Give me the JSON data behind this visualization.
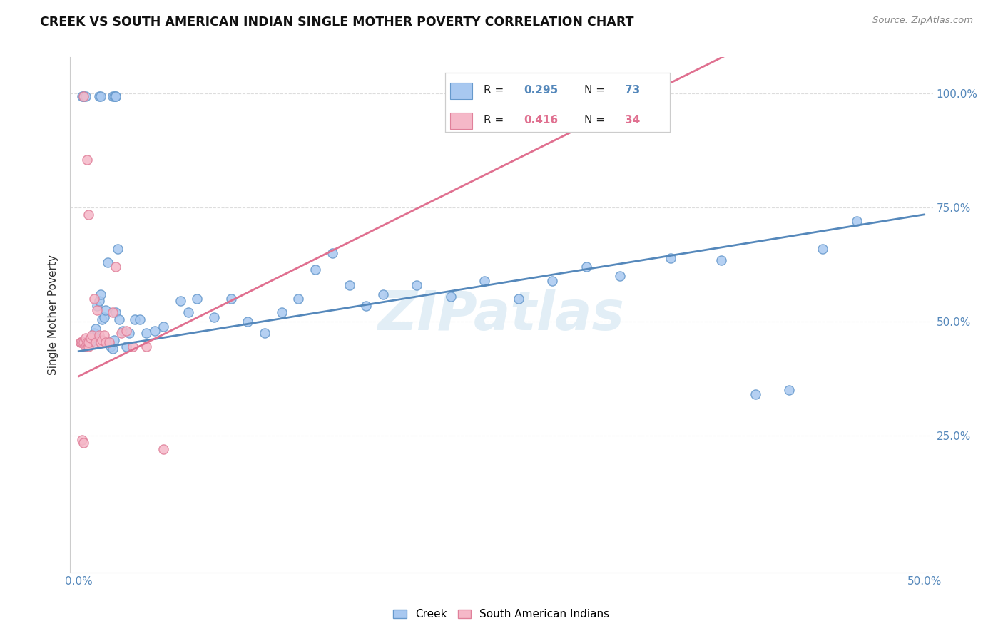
{
  "title": "CREEK VS SOUTH AMERICAN INDIAN SINGLE MOTHER POVERTY CORRELATION CHART",
  "source": "Source: ZipAtlas.com",
  "ylabel": "Single Mother Poverty",
  "creek_color": "#A8C8F0",
  "creek_edge_color": "#6699CC",
  "south_american_color": "#F5B8C8",
  "south_american_edge_color": "#E0809A",
  "trendline_creek_color": "#5588BB",
  "trendline_south_color": "#E07090",
  "legend_label_creek": "Creek",
  "legend_label_south": "South American Indians",
  "watermark": "ZIPatlas",
  "creek_x": [
    0.002,
    0.002,
    0.003,
    0.003,
    0.004,
    0.004,
    0.005,
    0.006,
    0.006,
    0.007,
    0.007,
    0.008,
    0.009,
    0.01,
    0.011,
    0.012,
    0.013,
    0.014,
    0.015,
    0.016,
    0.017,
    0.018,
    0.019,
    0.02,
    0.021,
    0.022,
    0.024,
    0.026,
    0.028,
    0.03,
    0.033,
    0.036,
    0.04,
    0.045,
    0.05,
    0.06,
    0.065,
    0.07,
    0.08,
    0.09,
    0.1,
    0.11,
    0.12,
    0.13,
    0.14,
    0.15,
    0.16,
    0.17,
    0.18,
    0.2,
    0.22,
    0.24,
    0.26,
    0.28,
    0.3,
    0.32,
    0.35,
    0.38,
    0.4,
    0.42,
    0.44,
    0.46,
    0.002,
    0.003,
    0.003,
    0.004,
    0.012,
    0.013,
    0.02,
    0.021,
    0.022,
    0.022,
    0.023
  ],
  "creek_y": [
    0.455,
    0.455,
    0.455,
    0.455,
    0.455,
    0.455,
    0.455,
    0.455,
    0.455,
    0.455,
    0.455,
    0.465,
    0.475,
    0.485,
    0.535,
    0.545,
    0.56,
    0.505,
    0.51,
    0.525,
    0.63,
    0.455,
    0.445,
    0.44,
    0.46,
    0.52,
    0.505,
    0.48,
    0.445,
    0.475,
    0.505,
    0.505,
    0.475,
    0.48,
    0.49,
    0.545,
    0.52,
    0.55,
    0.51,
    0.55,
    0.5,
    0.475,
    0.52,
    0.55,
    0.615,
    0.65,
    0.58,
    0.535,
    0.56,
    0.58,
    0.555,
    0.59,
    0.55,
    0.59,
    0.62,
    0.6,
    0.64,
    0.635,
    0.34,
    0.35,
    0.66,
    0.72,
    0.995,
    0.995,
    0.995,
    0.995,
    0.995,
    0.995,
    0.995,
    0.995,
    0.995,
    0.995,
    0.66
  ],
  "south_x": [
    0.001,
    0.001,
    0.002,
    0.002,
    0.003,
    0.003,
    0.004,
    0.004,
    0.005,
    0.005,
    0.006,
    0.006,
    0.007,
    0.008,
    0.009,
    0.01,
    0.011,
    0.012,
    0.013,
    0.014,
    0.015,
    0.016,
    0.018,
    0.02,
    0.022,
    0.025,
    0.028,
    0.032,
    0.04,
    0.05,
    0.002,
    0.003,
    0.005,
    0.006
  ],
  "south_y": [
    0.455,
    0.455,
    0.455,
    0.455,
    0.455,
    0.995,
    0.465,
    0.445,
    0.445,
    0.455,
    0.445,
    0.455,
    0.465,
    0.47,
    0.55,
    0.455,
    0.525,
    0.47,
    0.455,
    0.46,
    0.47,
    0.455,
    0.455,
    0.52,
    0.62,
    0.475,
    0.48,
    0.445,
    0.445,
    0.22,
    0.24,
    0.235,
    0.855,
    0.735
  ],
  "creek_trendline": [
    0.0,
    0.5,
    0.435,
    0.735
  ],
  "south_trendline": [
    0.0,
    0.5,
    0.38,
    1.3
  ],
  "xlim": [
    -0.005,
    0.505
  ],
  "ylim": [
    -0.05,
    1.08
  ],
  "xtick_vals": [
    0.0,
    0.1,
    0.2,
    0.3,
    0.4,
    0.5
  ],
  "xtick_labels": [
    "0.0%",
    "",
    "",
    "",
    "",
    "50.0%"
  ],
  "ytick_vals": [
    0.0,
    0.25,
    0.5,
    0.75,
    1.0
  ],
  "ytick_labels": [
    "",
    "25.0%",
    "50.0%",
    "75.0%",
    "100.0%"
  ]
}
